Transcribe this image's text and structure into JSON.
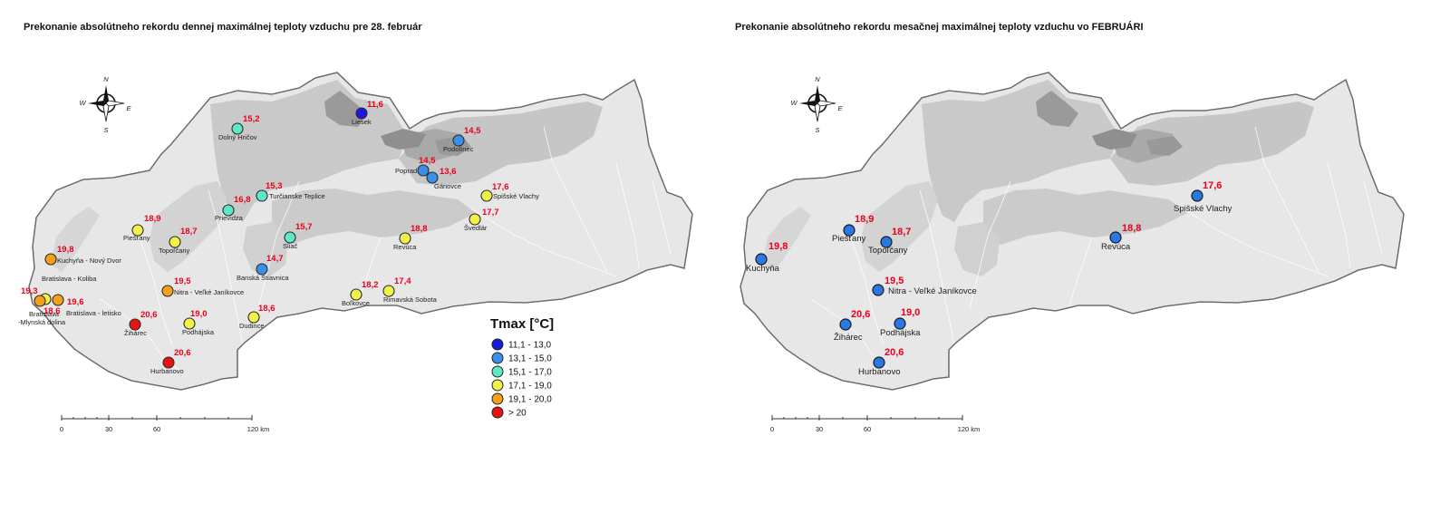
{
  "left_map": {
    "title": "Prekonanie absolútneho rekordu dennej maximálnej teploty vzduchu pre 28. február",
    "compass": {
      "n": "N",
      "s": "S",
      "e": "E",
      "w": "W"
    },
    "stations": [
      {
        "name": "Liesek",
        "value": "11,6",
        "class": 0
      },
      {
        "name": "Dolný Hričov",
        "value": "15,2",
        "class": 2
      },
      {
        "name": "Podolínec",
        "value": "14,5",
        "class": 1
      },
      {
        "name": "Poprad",
        "value": "14,5",
        "class": 1
      },
      {
        "name": "Gánovce",
        "value": "13,6",
        "class": 1
      },
      {
        "name": "Turčianske Teplice",
        "value": "15,3",
        "class": 2
      },
      {
        "name": "Prievidza",
        "value": "16,8",
        "class": 2
      },
      {
        "name": "Spišské Vlachy",
        "value": "17,6",
        "class": 3
      },
      {
        "name": "Švedlár",
        "value": "17,7",
        "class": 3
      },
      {
        "name": "Piešťany",
        "value": "18,9",
        "class": 3
      },
      {
        "name": "Topoľčany",
        "value": "18,7",
        "class": 3
      },
      {
        "name": "Sliač",
        "value": "15,7",
        "class": 2
      },
      {
        "name": "Revúca",
        "value": "18,8",
        "class": 3
      },
      {
        "name": "Kuchyňa - Nový Dvor",
        "value": "19,8",
        "class": 4
      },
      {
        "name": "Banská Štiavnica",
        "value": "14,7",
        "class": 1
      },
      {
        "name": "Bratislava - Koliba",
        "value": "18,6",
        "class": 3
      },
      {
        "name": "Bratislava -Mlynská dolina",
        "value": "19,3",
        "class": 4
      },
      {
        "name": "Bratislava - letisko",
        "value": "19,6",
        "class": 4
      },
      {
        "name": "Nitra - Veľké Janíkovce",
        "value": "19,5",
        "class": 4
      },
      {
        "name": "Boľkovce",
        "value": "18,2",
        "class": 3
      },
      {
        "name": "Rimavská Sobota",
        "value": "17,4",
        "class": 3
      },
      {
        "name": "Žihárec",
        "value": "20,6",
        "class": 5
      },
      {
        "name": "Podhájska",
        "value": "19,0",
        "class": 3
      },
      {
        "name": "Dudince",
        "value": "18,6",
        "class": 3
      },
      {
        "name": "Hurbanovo",
        "value": "20,6",
        "class": 5
      }
    ],
    "legend": {
      "title": "Tmax [°C]",
      "items": [
        {
          "label": "11,1 - 13,0",
          "color": "#1a1adf"
        },
        {
          "label": "13,1 - 15,0",
          "color": "#3a8fe6"
        },
        {
          "label": "15,1 - 17,0",
          "color": "#5ee8c8"
        },
        {
          "label": "17,1 - 19,0",
          "color": "#f0f24a"
        },
        {
          "label": "19,1 - 20,0",
          "color": "#f5a01a"
        },
        {
          "label": "> 20",
          "color": "#e81414"
        }
      ]
    },
    "scale": {
      "ticks": [
        "0",
        "30",
        "60",
        "120 km"
      ]
    }
  },
  "right_map": {
    "title": "Prekonanie absolútneho rekordu mesačnej maximálnej teploty vzduchu vo FEBRUÁRI",
    "compass": {
      "n": "N",
      "s": "S",
      "e": "E",
      "w": "W"
    },
    "marker_color": "#2a78e4",
    "stations": [
      {
        "name": "Spišské Vlachy",
        "value": "17,6"
      },
      {
        "name": "Piešťany",
        "value": "18,9"
      },
      {
        "name": "Topoľčany",
        "value": "18,7"
      },
      {
        "name": "Revúca",
        "value": "18,8"
      },
      {
        "name": "Kuchyňa",
        "value": "19,8"
      },
      {
        "name": "Nitra - Veľké Janíkovce",
        "value": "19,5"
      },
      {
        "name": "Žihárec",
        "value": "20,6"
      },
      {
        "name": "Podhájska",
        "value": "19,0"
      },
      {
        "name": "Hurbanovo",
        "value": "20,6"
      }
    ],
    "scale": {
      "ticks": [
        "0",
        "30",
        "60",
        "120 km"
      ]
    }
  }
}
